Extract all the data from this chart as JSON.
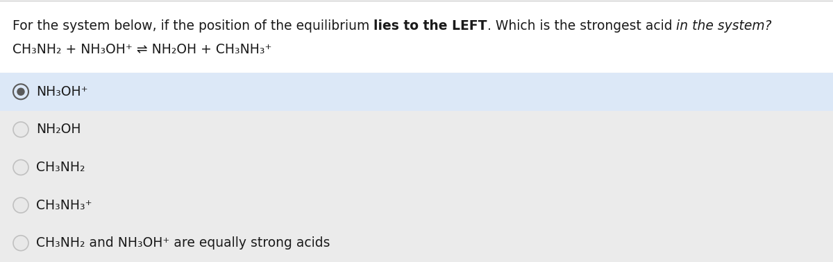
{
  "bg_color": "#ebebeb",
  "header_bg": "#ffffff",
  "selected_row_color": "#dce8f7",
  "unselected_row_color": "#ebebeb",
  "radio_selected_fill": "#5a5a5a",
  "radio_selected_edge": "#5a5a5a",
  "radio_unselected_edge": "#c0c0c0",
  "radio_unselected_fill": "#e8e8e8",
  "text_color": "#1a1a1a",
  "font_size": 13.5,
  "q_line1_normal1": "For the system below, if the position of the equilibrium ",
  "q_line1_bold": "lies to the LEFT",
  "q_line1_normal2": ". Which is the strongest acid ",
  "q_line1_italic": "in the system?",
  "equation": "CH₃NH₂ + NH₃OH⁺ ⇌ NH₂OH + CH₃NH₃⁺",
  "options": [
    "NH₃OH⁺",
    "NH₂OH",
    "CH₃NH₂",
    "CH₃NH₃⁺",
    "CH₃NH₂ and NH₃OH⁺ are equally strong acids"
  ],
  "selected_index": 0
}
